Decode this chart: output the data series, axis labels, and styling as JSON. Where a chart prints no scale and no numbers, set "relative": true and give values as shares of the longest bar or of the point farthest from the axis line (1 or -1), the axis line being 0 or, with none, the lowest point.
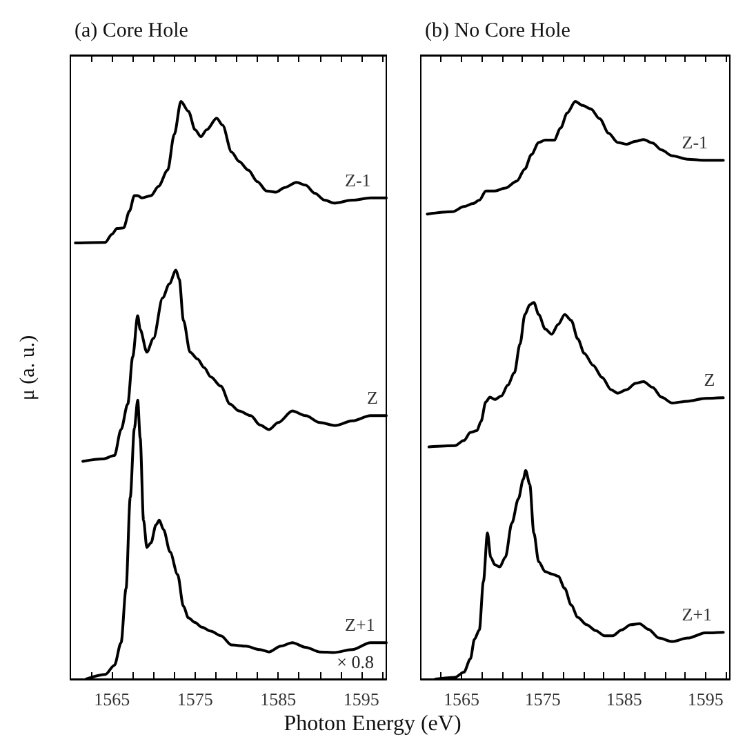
{
  "chart_data": [
    {
      "type": "line",
      "title": "(a) Core Hole",
      "xlabel": "Photon Energy (eV)",
      "ylabel": "μ (a. u.)",
      "relative": true,
      "legend": false,
      "grid": false,
      "marker": "none",
      "line_style": "solid",
      "tick_labels": "x",
      "annotations": [
        "× 0.8"
      ],
      "xlim": [
        1560,
        1598
      ],
      "xticks": [
        {
          "value": 1562.5,
          "label": null
        },
        1565,
        {
          "value": 1567.5,
          "label": null
        },
        {
          "value": 1570,
          "label": null
        },
        {
          "value": 1572.5,
          "label": null
        },
        1575,
        {
          "value": 1577.5,
          "label": null
        },
        {
          "value": 1580,
          "label": null
        },
        {
          "value": 1582.5,
          "label": null
        },
        1585,
        {
          "value": 1587.5,
          "label": null
        },
        {
          "value": 1590,
          "label": null
        },
        {
          "value": 1592.5,
          "label": null
        },
        1595,
        {
          "value": 1597.5,
          "label": null
        }
      ],
      "series": [
        {
          "name": "Z-1",
          "color": "#000000",
          "x": [
            1560.6,
            1564.2,
            1565.0,
            1565.6,
            1566.4,
            1567.1,
            1567.7,
            1568.1,
            1568.6,
            1569.7,
            1570.6,
            1571.7,
            1572.5,
            1573.3,
            1574.2,
            1575.0,
            1575.7,
            1576.4,
            1577.6,
            1578.3,
            1579.4,
            1580.3,
            1581.4,
            1582.5,
            1583.6,
            1584.7,
            1585.8,
            1587.2,
            1588.3,
            1589.4,
            1590.6,
            1591.7,
            1593.9,
            1596.1,
            1598
          ],
          "values": [
            0.755,
            0.756,
            0.77,
            0.78,
            0.781,
            0.81,
            0.837,
            0.837,
            0.833,
            0.837,
            0.853,
            0.881,
            0.943,
            1.0,
            0.983,
            0.951,
            0.939,
            0.951,
            0.971,
            0.959,
            0.912,
            0.896,
            0.881,
            0.861,
            0.845,
            0.843,
            0.851,
            0.86,
            0.855,
            0.841,
            0.829,
            0.824,
            0.829,
            0.833,
            0.833
          ]
        },
        {
          "name": "Z",
          "color": "#000000",
          "x": [
            1561.5,
            1563.9,
            1565.3,
            1566.1,
            1566.9,
            1567.5,
            1568.1,
            1568.4,
            1569.2,
            1570.0,
            1571.1,
            1571.9,
            1572.7,
            1573.1,
            1573.6,
            1574.4,
            1575.3,
            1576.1,
            1576.9,
            1578.1,
            1579.2,
            1580.3,
            1581.7,
            1582.8,
            1583.9,
            1585.0,
            1586.7,
            1588.3,
            1590.0,
            1591.9,
            1593.9,
            1596.1,
            1598
          ],
          "values": [
            0.377,
            0.381,
            0.387,
            0.432,
            0.476,
            0.558,
            0.629,
            0.605,
            0.566,
            0.59,
            0.66,
            0.684,
            0.708,
            0.692,
            0.621,
            0.566,
            0.554,
            0.539,
            0.523,
            0.507,
            0.476,
            0.464,
            0.456,
            0.44,
            0.432,
            0.444,
            0.464,
            0.456,
            0.444,
            0.439,
            0.447,
            0.456,
            0.456
          ]
        },
        {
          "name": "Z+1",
          "color": "#000000",
          "x": [
            1561.9,
            1564.2,
            1565.3,
            1566.1,
            1566.7,
            1567.2,
            1567.7,
            1568.1,
            1568.4,
            1568.8,
            1569.2,
            1569.7,
            1570.3,
            1570.7,
            1571.2,
            1572.0,
            1572.9,
            1573.6,
            1574.2,
            1575.0,
            1575.8,
            1576.9,
            1578.1,
            1579.4,
            1581.1,
            1582.8,
            1583.9,
            1585.3,
            1586.7,
            1588.3,
            1590.0,
            1591.7,
            1593.9,
            1596.1,
            1598
          ],
          "values": [
            0.0,
            0.008,
            0.024,
            0.063,
            0.157,
            0.314,
            0.434,
            0.483,
            0.417,
            0.275,
            0.228,
            0.236,
            0.267,
            0.275,
            0.259,
            0.22,
            0.181,
            0.126,
            0.106,
            0.098,
            0.09,
            0.083,
            0.075,
            0.059,
            0.057,
            0.051,
            0.047,
            0.057,
            0.063,
            0.055,
            0.047,
            0.046,
            0.051,
            0.063,
            0.063
          ]
        }
      ]
    },
    {
      "type": "line",
      "title": "(b) No Core Hole",
      "relative": true,
      "legend": false,
      "grid": false,
      "marker": "none",
      "line_style": "solid",
      "tick_labels": "x",
      "xlim": [
        1560,
        1598
      ],
      "xticks": [
        {
          "value": 1562.5,
          "label": null
        },
        1565,
        {
          "value": 1567.5,
          "label": null
        },
        {
          "value": 1570,
          "label": null
        },
        {
          "value": 1572.5,
          "label": null
        },
        1575,
        {
          "value": 1577.5,
          "label": null
        },
        {
          "value": 1580,
          "label": null
        },
        {
          "value": 1582.5,
          "label": null
        },
        1585,
        {
          "value": 1587.5,
          "label": null
        },
        {
          "value": 1590,
          "label": null
        },
        {
          "value": 1592.5,
          "label": null
        },
        1595,
        {
          "value": 1597.5,
          "label": null
        }
      ],
      "series": [
        {
          "name": "Z-1",
          "color": "#000000",
          "x": [
            1560.8,
            1563.9,
            1565.3,
            1566.4,
            1567.2,
            1568.0,
            1569.1,
            1570.4,
            1571.8,
            1572.8,
            1573.6,
            1574.5,
            1575.3,
            1576.4,
            1577.2,
            1578.0,
            1579.0,
            1579.9,
            1580.9,
            1582.0,
            1583.1,
            1584.2,
            1585.3,
            1586.4,
            1587.4,
            1588.5,
            1589.6,
            1590.9,
            1592.8,
            1595.0,
            1597.2
          ],
          "values": [
            0.805,
            0.809,
            0.818,
            0.823,
            0.829,
            0.845,
            0.845,
            0.85,
            0.862,
            0.883,
            0.908,
            0.929,
            0.933,
            0.933,
            0.954,
            0.98,
            1.0,
            0.993,
            0.987,
            0.97,
            0.945,
            0.929,
            0.926,
            0.931,
            0.934,
            0.928,
            0.916,
            0.906,
            0.9,
            0.898,
            0.898
          ]
        },
        {
          "name": "Z",
          "color": "#000000",
          "x": [
            1561.0,
            1564.2,
            1565.3,
            1566.1,
            1566.9,
            1567.4,
            1568.0,
            1568.5,
            1569.1,
            1569.9,
            1570.7,
            1571.5,
            1572.2,
            1572.8,
            1573.4,
            1573.9,
            1574.5,
            1575.3,
            1576.1,
            1576.9,
            1577.7,
            1578.5,
            1579.3,
            1580.1,
            1581.2,
            1582.3,
            1583.4,
            1584.2,
            1585.3,
            1586.4,
            1587.4,
            1588.5,
            1589.6,
            1590.9,
            1592.8,
            1595.0,
            1597.2
          ],
          "values": [
            0.402,
            0.404,
            0.413,
            0.427,
            0.43,
            0.446,
            0.48,
            0.488,
            0.484,
            0.49,
            0.509,
            0.53,
            0.58,
            0.631,
            0.648,
            0.652,
            0.631,
            0.606,
            0.597,
            0.614,
            0.631,
            0.621,
            0.589,
            0.564,
            0.543,
            0.522,
            0.501,
            0.495,
            0.501,
            0.512,
            0.515,
            0.505,
            0.488,
            0.478,
            0.481,
            0.486,
            0.487
          ]
        },
        {
          "name": "Z+1",
          "color": "#000000",
          "x": [
            1561.8,
            1564.2,
            1565.3,
            1566.1,
            1566.6,
            1567.2,
            1567.7,
            1568.2,
            1568.6,
            1569.1,
            1569.7,
            1570.4,
            1571.2,
            1572.0,
            1572.6,
            1572.9,
            1573.4,
            1573.9,
            1574.5,
            1575.3,
            1576.1,
            1576.9,
            1577.7,
            1578.5,
            1579.3,
            1580.4,
            1581.5,
            1582.6,
            1583.6,
            1584.7,
            1585.8,
            1586.9,
            1588.0,
            1589.3,
            1590.9,
            1592.8,
            1595.0,
            1597.2
          ],
          "values": [
            0.0,
            0.003,
            0.012,
            0.035,
            0.069,
            0.085,
            0.169,
            0.253,
            0.211,
            0.198,
            0.194,
            0.211,
            0.27,
            0.312,
            0.346,
            0.361,
            0.337,
            0.253,
            0.203,
            0.186,
            0.182,
            0.178,
            0.157,
            0.128,
            0.107,
            0.094,
            0.084,
            0.075,
            0.075,
            0.085,
            0.094,
            0.096,
            0.086,
            0.071,
            0.065,
            0.071,
            0.08,
            0.081
          ]
        }
      ]
    }
  ]
}
